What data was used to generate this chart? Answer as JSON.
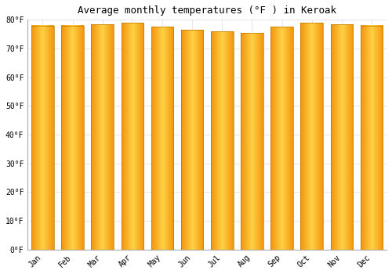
{
  "title": "Average monthly temperatures (°F ) in Keroak",
  "months": [
    "Jan",
    "Feb",
    "Mar",
    "Apr",
    "May",
    "Jun",
    "Jul",
    "Aug",
    "Sep",
    "Oct",
    "Nov",
    "Dec"
  ],
  "values": [
    78,
    78,
    78.5,
    79,
    77.5,
    76.5,
    76,
    75.5,
    77.5,
    79,
    78.5,
    78
  ],
  "bar_color_main": "#FFB300",
  "bar_color_light": "#FFD060",
  "bar_color_dark": "#E07800",
  "background_color": "#FFFFFF",
  "plot_bg_color": "#FFFFFF",
  "ylim": [
    0,
    80
  ],
  "yticks": [
    0,
    10,
    20,
    30,
    40,
    50,
    60,
    70,
    80
  ],
  "ytick_labels": [
    "0°F",
    "10°F",
    "20°F",
    "30°F",
    "40°F",
    "50°F",
    "60°F",
    "70°F",
    "80°F"
  ],
  "title_fontsize": 9,
  "tick_fontsize": 7,
  "grid_color": "#E0E0E8",
  "font_family": "monospace"
}
